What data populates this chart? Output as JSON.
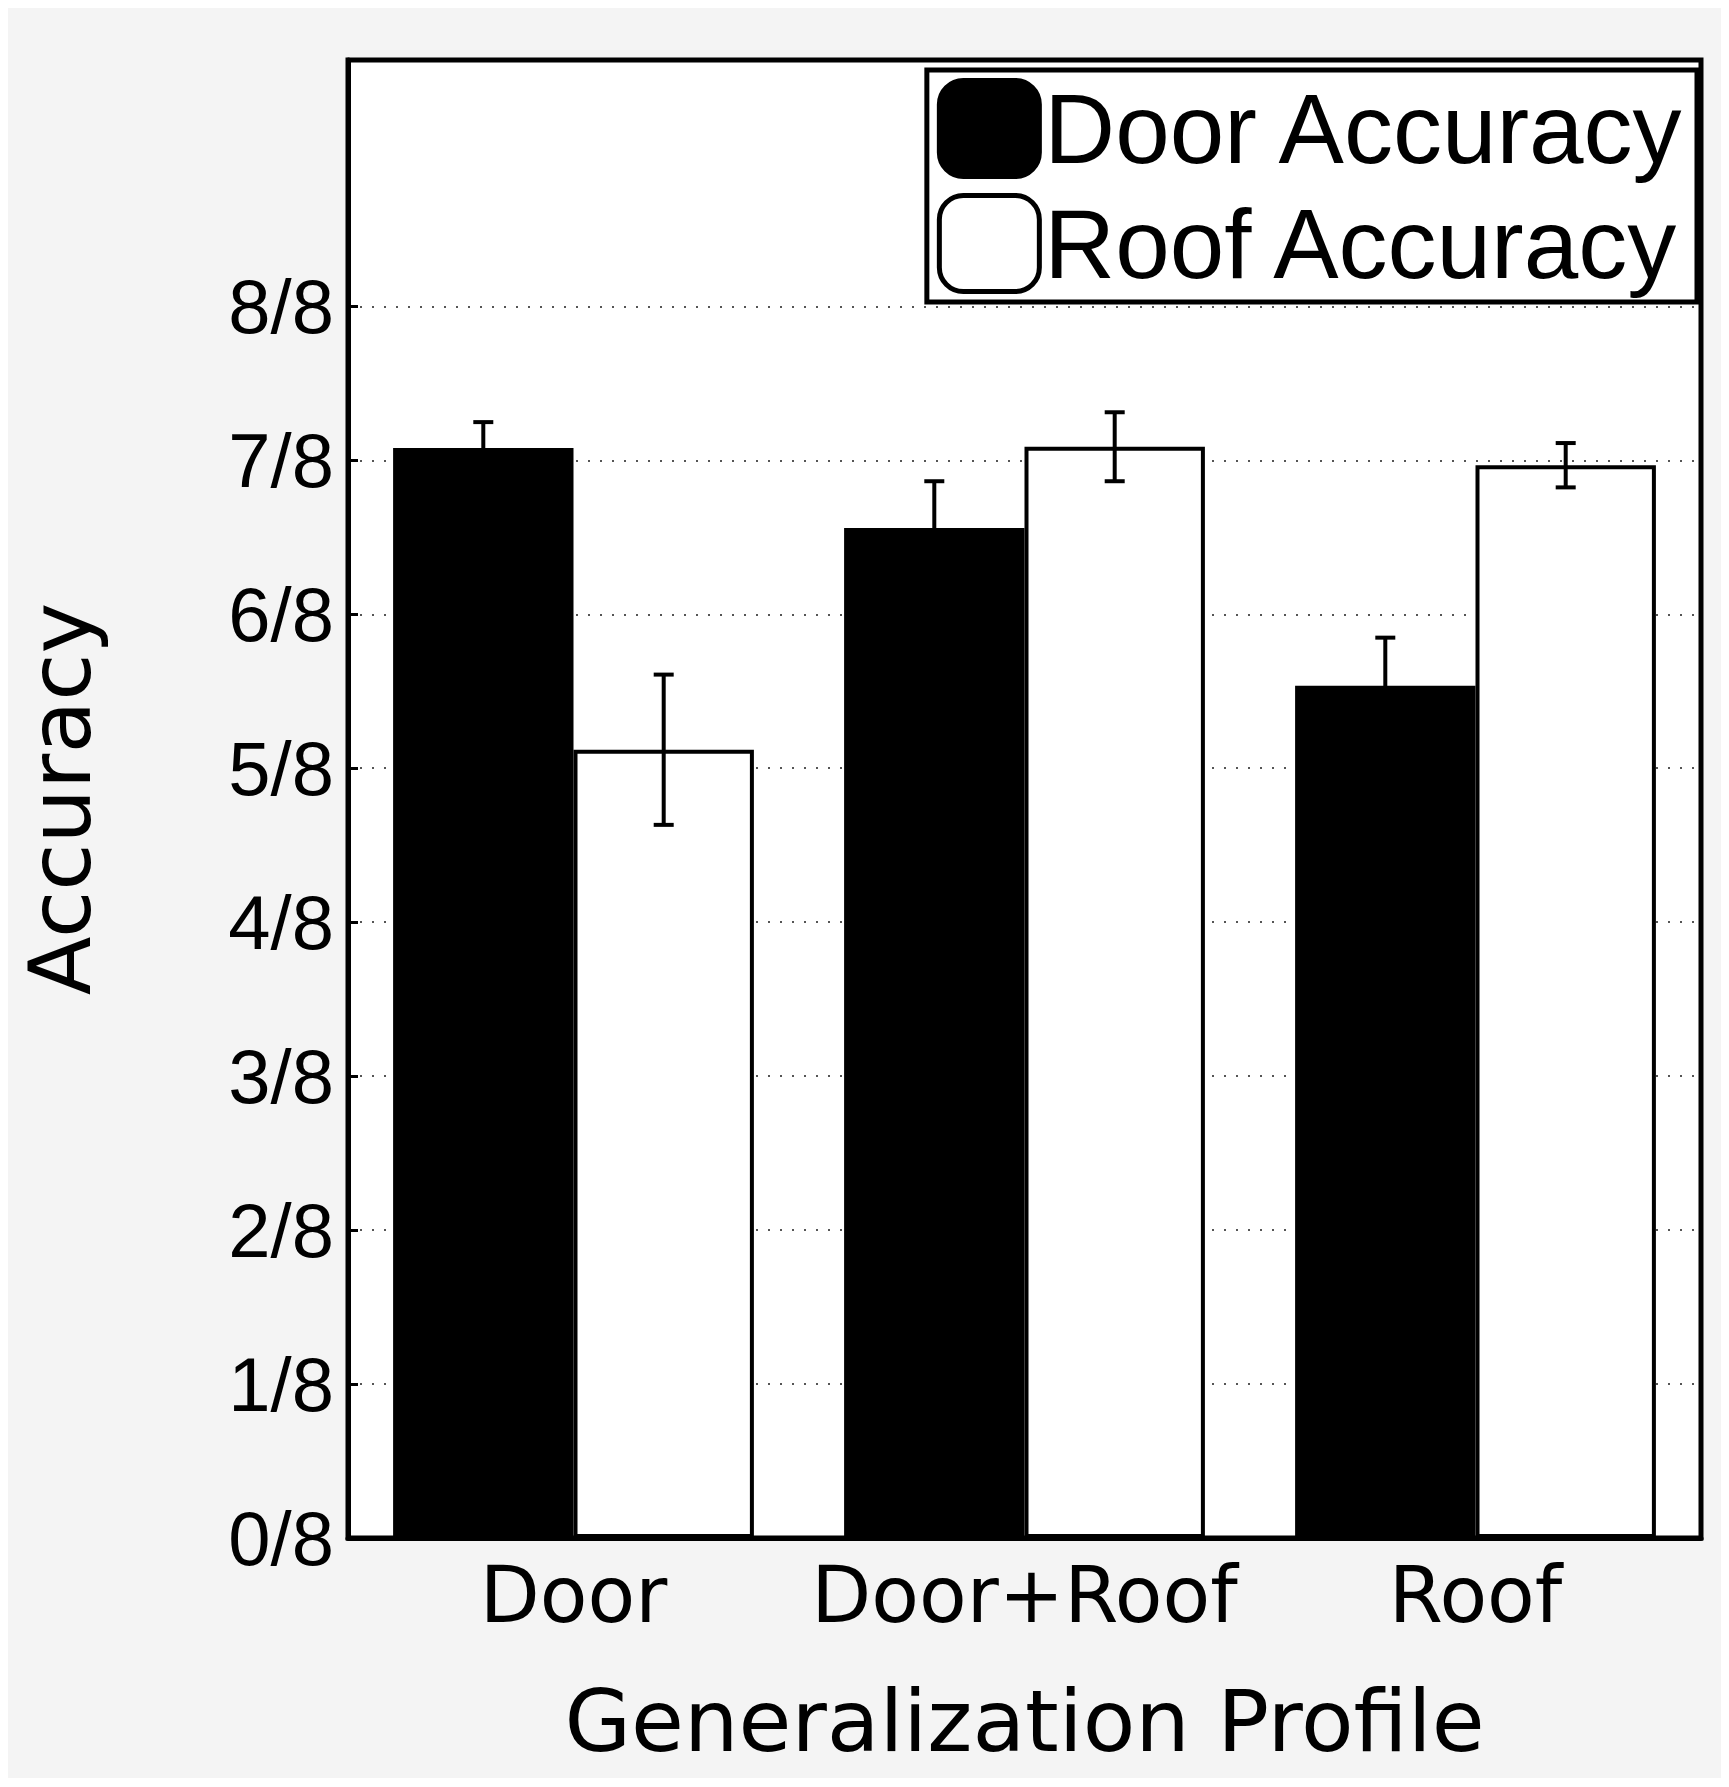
{
  "chart_data": {
    "type": "bar",
    "xlabel": "Generalization Profile",
    "ylabel": "Accuracy",
    "categories": [
      "Door",
      "Door+Roof",
      "Roof"
    ],
    "series": [
      {
        "name": "Door Accuracy",
        "color": "#000000",
        "values": [
          0.885,
          0.82,
          0.692
        ],
        "errors": [
          0.021,
          0.038,
          0.039
        ]
      },
      {
        "name": "Roof Accuracy",
        "color": "#ffffff",
        "values": [
          0.64,
          0.886,
          0.871
        ],
        "errors": [
          0.061,
          0.028,
          0.018
        ]
      }
    ],
    "ylim": [
      0,
      1.2
    ],
    "yticks": [
      {
        "value": 0,
        "label": "0/8"
      },
      {
        "value": 0.125,
        "label": "1/8"
      },
      {
        "value": 0.25,
        "label": "2/8"
      },
      {
        "value": 0.375,
        "label": "3/8"
      },
      {
        "value": 0.5,
        "label": "4/8"
      },
      {
        "value": 0.625,
        "label": "5/8"
      },
      {
        "value": 0.75,
        "label": "6/8"
      },
      {
        "value": 0.875,
        "label": "7/8"
      },
      {
        "value": 1,
        "label": "8/8"
      }
    ],
    "grid": "y",
    "legend": "top right"
  }
}
